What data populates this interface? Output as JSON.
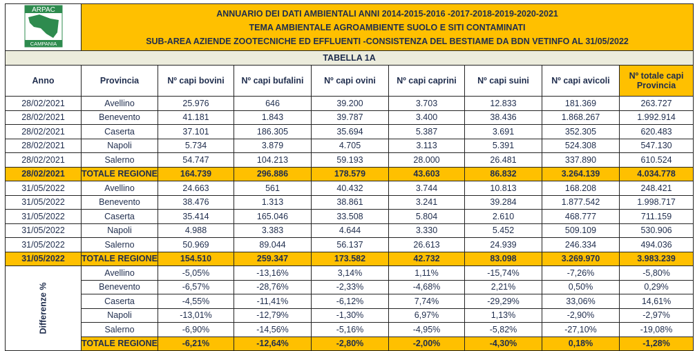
{
  "header": {
    "logo_top": "ARPAC",
    "logo_bottom": "CAMPANIA",
    "lines": [
      "ANNUARIO DEI DATI AMBIENTALI ANNI 2014-2015-2016 -2017-2018-2019-2020-2021",
      "TEMA AMBIENTALE AGROAMBIENTE SUOLO E SITI CONTAMINATI",
      "SUB-AREA AZIENDE ZOOTECNICHE ED EFFLUENTI -CONSISTENZA DEL BESTIAME  DA BDN VETINFO AL 31/05/2022"
    ]
  },
  "table_title": "TABELLA 1A",
  "columns": [
    "Anno",
    "Provincia",
    "Nº capi bovini",
    "Nº capi bufalini",
    "Nº capi ovini",
    "Nº capi caprini",
    "Nº capi suini",
    "Nº capi avicoli",
    "Nº totale capi Provincia"
  ],
  "rows": [
    [
      "28/02/2021",
      "Avellino",
      "25.976",
      "646",
      "39.200",
      "3.703",
      "12.833",
      "181.369",
      "263.727"
    ],
    [
      "28/02/2021",
      "Benevento",
      "41.181",
      "1.843",
      "39.787",
      "3.400",
      "38.436",
      "1.868.267",
      "1.992.914"
    ],
    [
      "28/02/2021",
      "Caserta",
      "37.101",
      "186.305",
      "35.694",
      "5.387",
      "3.691",
      "352.305",
      "620.483"
    ],
    [
      "28/02/2021",
      "Napoli",
      "5.734",
      "3.879",
      "4.705",
      "3.113",
      "5.391",
      "524.308",
      "547.130"
    ],
    [
      "28/02/2021",
      "Salerno",
      "54.747",
      "104.213",
      "59.193",
      "28.000",
      "26.481",
      "337.890",
      "610.524"
    ],
    [
      "28/02/2021",
      "TOTALE REGIONE",
      "164.739",
      "296.886",
      "178.579",
      "43.603",
      "86.832",
      "3.264.139",
      "4.034.778"
    ],
    [
      "31/05/2022",
      "Avellino",
      "24.663",
      "561",
      "40.432",
      "3.744",
      "10.813",
      "168.208",
      "248.421"
    ],
    [
      "31/05/2022",
      "Benevento",
      "38.476",
      "1.313",
      "38.861",
      "3.241",
      "39.284",
      "1.877.542",
      "1.998.717"
    ],
    [
      "31/05/2022",
      "Caserta",
      "35.414",
      "165.046",
      "33.508",
      "5.804",
      "2.610",
      "468.777",
      "711.159"
    ],
    [
      "31/05/2022",
      "Napoli",
      "4.988",
      "3.383",
      "4.644",
      "3.330",
      "5.452",
      "509.109",
      "530.906"
    ],
    [
      "31/05/2022",
      "Salerno",
      "50.969",
      "89.044",
      "56.137",
      "26.613",
      "24.939",
      "246.334",
      "494.036"
    ],
    [
      "31/05/2022",
      "TOTALE REGIONE",
      "154.510",
      "259.347",
      "173.582",
      "42.732",
      "83.098",
      "3.269.970",
      "3.983.239"
    ]
  ],
  "diff_label": "Differenze %",
  "diff_rows": [
    [
      "Avellino",
      "-5,05%",
      "-13,16%",
      "3,14%",
      "1,11%",
      "-15,74%",
      "-7,26%",
      "-5,80%"
    ],
    [
      "Benevento",
      "-6,57%",
      "-28,76%",
      "-2,33%",
      "-4,68%",
      "2,21%",
      "0,50%",
      "0,29%"
    ],
    [
      "Caserta",
      "-4,55%",
      "-11,41%",
      "-6,12%",
      "7,74%",
      "-29,29%",
      "33,06%",
      "14,61%"
    ],
    [
      "Napoli",
      "-13,01%",
      "-12,79%",
      "-1,30%",
      "6,97%",
      "1,13%",
      "-2,90%",
      "-2,97%"
    ],
    [
      "Salerno",
      "-6,90%",
      "-14,56%",
      "-5,16%",
      "-4,95%",
      "-5,82%",
      "-27,10%",
      "-19,08%"
    ],
    [
      "TOTALE REGIONE",
      "-6,21%",
      "-12,64%",
      "-2,80%",
      "-2,00%",
      "-4,30%",
      "0,18%",
      "-1,28%"
    ]
  ],
  "colors": {
    "accent": "#ffc000",
    "logo_green": "#2e8b4e"
  }
}
